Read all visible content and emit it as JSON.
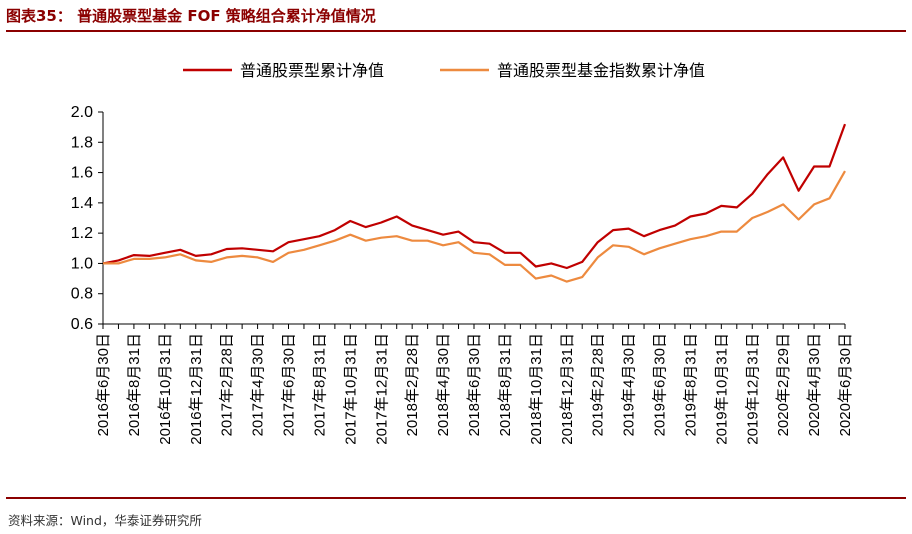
{
  "figure": {
    "title": "图表35： 普通股票型基金 FOF 策略组合累计净值情况",
    "source": "资料来源：Wind，华泰证券研究所"
  },
  "colors": {
    "accent": "#8b0000",
    "series_1": "#c00000",
    "series_2": "#ed8a3f",
    "axis": "#000000"
  },
  "chart_data": {
    "type": "line",
    "title": "",
    "xlabel": "",
    "ylabel": "",
    "ylim": [
      0.6,
      2.0
    ],
    "yticks": [
      0.6,
      0.8,
      1.0,
      1.2,
      1.4,
      1.6,
      1.8,
      2.0
    ],
    "ytick_labels": [
      "0.6",
      "0.8",
      "1.0",
      "1.2",
      "1.4",
      "1.6",
      "1.8",
      "2.0"
    ],
    "legend_position": "top",
    "grid": false,
    "x": [
      "2016-06-30",
      "2016-07-31",
      "2016-08-31",
      "2016-09-30",
      "2016-10-31",
      "2016-11-30",
      "2016-12-31",
      "2017-01-31",
      "2017-02-28",
      "2017-03-31",
      "2017-04-30",
      "2017-05-31",
      "2017-06-30",
      "2017-07-31",
      "2017-08-31",
      "2017-09-30",
      "2017-10-31",
      "2017-11-30",
      "2017-12-31",
      "2018-01-31",
      "2018-02-28",
      "2018-03-31",
      "2018-04-30",
      "2018-05-31",
      "2018-06-30",
      "2018-07-31",
      "2018-08-31",
      "2018-09-30",
      "2018-10-31",
      "2018-11-30",
      "2018-12-31",
      "2019-01-31",
      "2019-02-28",
      "2019-03-31",
      "2019-04-30",
      "2019-05-31",
      "2019-06-30",
      "2019-07-31",
      "2019-08-31",
      "2019-09-30",
      "2019-10-31",
      "2019-11-30",
      "2019-12-31",
      "2020-01-31",
      "2020-02-29",
      "2020-03-31",
      "2020-04-30",
      "2020-05-31",
      "2020-06-30"
    ],
    "tick_labels": [
      "2016年6月30日",
      "2016年8月31日",
      "2016年10月31日",
      "2016年12月31日",
      "2017年2月28日",
      "2017年4月30日",
      "2017年6月30日",
      "2017年8月31日",
      "2017年10月31日",
      "2017年12月31日",
      "2018年2月28日",
      "2018年4月30日",
      "2018年6月30日",
      "2018年8月31日",
      "2018年10月31日",
      "2018年12月31日",
      "2019年2月28日",
      "2019年4月30日",
      "2019年6月30日",
      "2019年8月31日",
      "2019年10月31日",
      "2019年12月31日",
      "2020年2月29日",
      "2020年4月30日",
      "2020年6月30日"
    ],
    "series": [
      {
        "name": "普通股票型累计净值",
        "values": [
          1.0,
          1.02,
          1.055,
          1.05,
          1.07,
          1.09,
          1.05,
          1.06,
          1.095,
          1.1,
          1.09,
          1.08,
          1.14,
          1.16,
          1.18,
          1.22,
          1.28,
          1.24,
          1.27,
          1.31,
          1.25,
          1.22,
          1.19,
          1.21,
          1.14,
          1.13,
          1.07,
          1.07,
          0.98,
          1.0,
          0.97,
          1.01,
          1.14,
          1.22,
          1.23,
          1.18,
          1.22,
          1.25,
          1.31,
          1.33,
          1.38,
          1.37,
          1.46,
          1.59,
          1.7,
          1.48,
          1.64,
          1.64,
          1.92
        ]
      },
      {
        "name": "普通股票型基金指数累计净值",
        "values": [
          1.0,
          1.0,
          1.03,
          1.03,
          1.04,
          1.06,
          1.02,
          1.01,
          1.04,
          1.05,
          1.04,
          1.01,
          1.07,
          1.09,
          1.12,
          1.15,
          1.19,
          1.15,
          1.17,
          1.18,
          1.15,
          1.15,
          1.12,
          1.14,
          1.07,
          1.06,
          0.99,
          0.99,
          0.9,
          0.92,
          0.88,
          0.91,
          1.04,
          1.12,
          1.11,
          1.06,
          1.1,
          1.13,
          1.16,
          1.18,
          1.21,
          1.21,
          1.3,
          1.34,
          1.39,
          1.29,
          1.39,
          1.43,
          1.61
        ]
      }
    ]
  }
}
